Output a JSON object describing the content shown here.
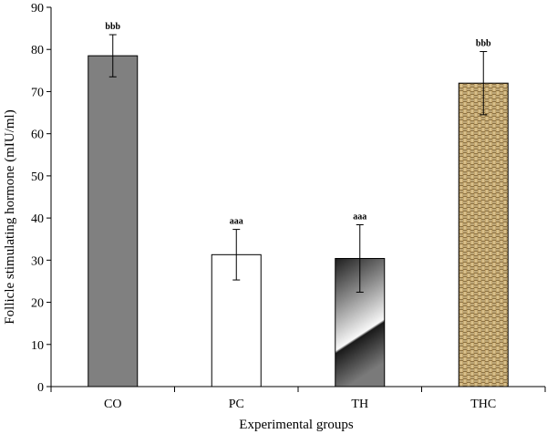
{
  "chart_data": {
    "type": "bar",
    "categories": [
      "CO",
      "PC",
      "TH",
      "THC"
    ],
    "values": [
      78.5,
      31.3,
      30.4,
      72.0
    ],
    "errors": [
      5.0,
      6.0,
      8.0,
      7.5
    ],
    "significance": [
      "bbb",
      "aaa",
      "aaa",
      "bbb"
    ],
    "fills": [
      "solid-gray",
      "white",
      "gradient-gray",
      "woven-tan"
    ],
    "colors": {
      "solid_gray": "#808080",
      "tan": "#b89a62",
      "tan_dark": "#6e5a36"
    },
    "xlabel": "Experimental groups",
    "ylabel": "Follicle stimulating hormone (mIU/ml)",
    "ylim": [
      0,
      90
    ],
    "yticks": [
      0,
      10,
      20,
      30,
      40,
      50,
      60,
      70,
      80,
      90
    ],
    "grid": false
  }
}
